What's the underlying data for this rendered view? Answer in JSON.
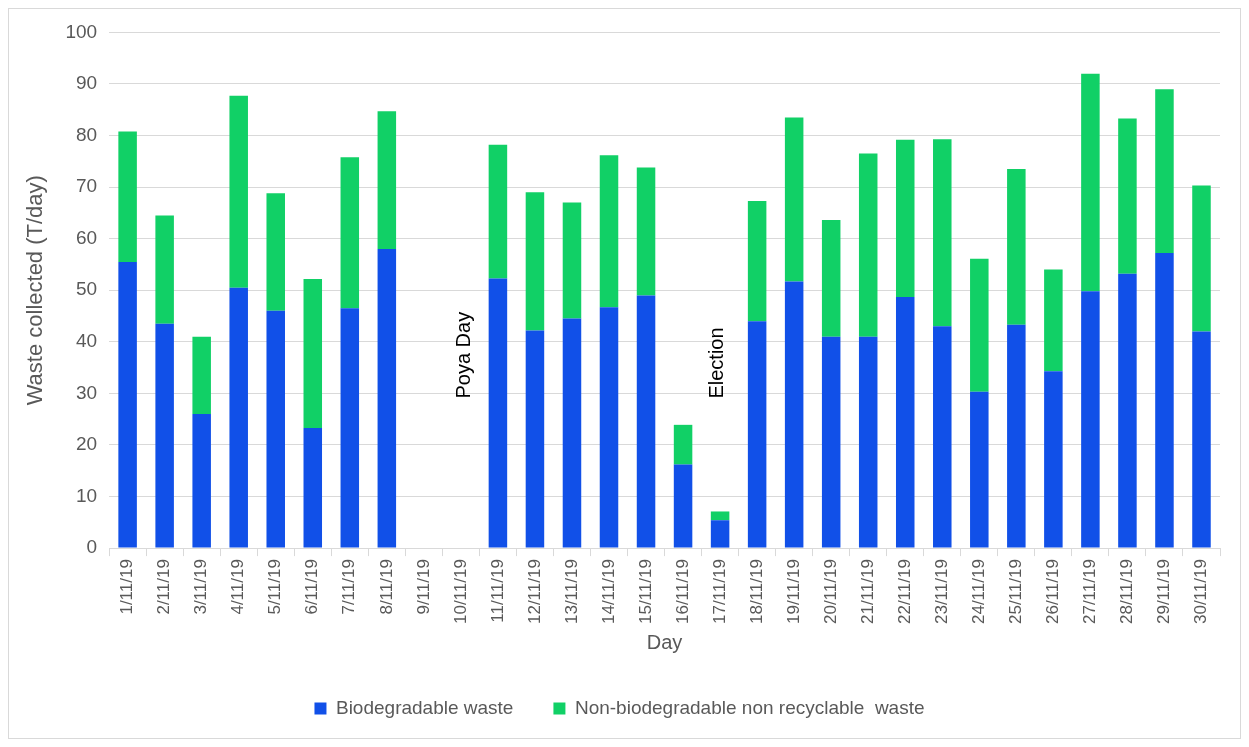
{
  "chart_data": {
    "type": "bar",
    "stacked": true,
    "xlabel": "Day",
    "ylabel": "Waste collected (T/day)",
    "categories": [
      "1/11/19",
      "2/11/19",
      "3/11/19",
      "4/11/19",
      "5/11/19",
      "6/11/19",
      "7/11/19",
      "8/11/19",
      "9/11/19",
      "10/11/19",
      "11/11/19",
      "12/11/19",
      "13/11/19",
      "14/11/19",
      "15/11/19",
      "16/11/19",
      "17/11/19",
      "18/11/19",
      "19/11/19",
      "20/11/19",
      "21/11/19",
      "22/11/19",
      "23/11/19",
      "24/11/19",
      "25/11/19",
      "26/11/19",
      "27/11/19",
      "28/11/19",
      "29/11/19",
      "30/11/19"
    ],
    "series": [
      {
        "name": "Biodegradable waste",
        "color": "#1150e8",
        "values": [
          55.5,
          43.5,
          26,
          50.5,
          46,
          23.3,
          46.5,
          58,
          null,
          null,
          52.3,
          42.2,
          44.5,
          46.7,
          49,
          16.2,
          5.4,
          44,
          51.7,
          41,
          41,
          48.7,
          43,
          30.3,
          43.3,
          34.3,
          49.8,
          53.2,
          57.2,
          42
        ]
      },
      {
        "name": "Non-biodegradable non recyclable  waste",
        "color": "#11d066",
        "values": [
          25.3,
          21,
          15,
          37.2,
          22.8,
          28.9,
          29.3,
          26.7,
          null,
          null,
          25.9,
          26.8,
          22.5,
          29.5,
          24.8,
          7.7,
          1.7,
          23.3,
          31.8,
          22.6,
          35.5,
          30.5,
          36.3,
          25.8,
          30.2,
          19.7,
          42.2,
          30.1,
          31.8,
          28.3
        ]
      }
    ],
    "ylim": [
      0,
      100
    ],
    "yticks": [
      0,
      10,
      20,
      30,
      40,
      50,
      60,
      70,
      80,
      90,
      100
    ],
    "grid": "y",
    "legend": "bottom",
    "annotations": [
      "Poya Day",
      "Election"
    ]
  }
}
